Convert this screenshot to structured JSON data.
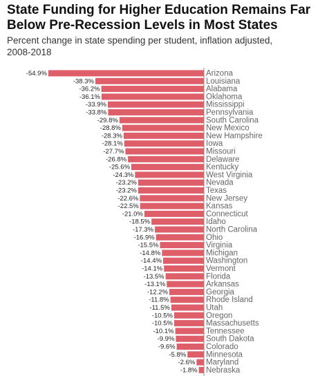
{
  "chart_data": {
    "type": "bar",
    "orientation": "horizontal",
    "title": "State Funding for Higher Education Remains Far Below Pre-Recession Levels in Most States",
    "subtitle": "Percent change in state spending per student, inflation adjusted, 2008-2018",
    "color": "#de5f69",
    "categories": [
      "Arizona",
      "Louisiana",
      "Alabama",
      "Oklahoma",
      "Mississippi",
      "Pennsylvania",
      "South Carolina",
      "New Mexico",
      "New Hampshire",
      "Iowa",
      "Missouri",
      "Delaware",
      "Kentucky",
      "West Virginia",
      "Nevada",
      "Texas",
      "New Jersey",
      "Kansas",
      "Connecticut",
      "Idaho",
      "North Carolina",
      "Ohio",
      "Virginia",
      "Michigan",
      "Washington",
      "Vermont",
      "Florida",
      "Arkansas",
      "Georgia",
      "Rhode Island",
      "Utah",
      "Oregon",
      "Massachusetts",
      "Tennessee",
      "South Dakota",
      "Colorado",
      "Minnesota",
      "Maryland",
      "Nebraska"
    ],
    "values": [
      -54.9,
      -38.3,
      -36.2,
      -36.1,
      -33.9,
      -33.8,
      -29.8,
      -28.8,
      -28.3,
      -28.1,
      -27.7,
      -26.8,
      -25.6,
      -24.3,
      -23.2,
      -23.2,
      -22.6,
      -22.5,
      -21.0,
      -18.5,
      -17.3,
      -16.9,
      -15.5,
      -14.8,
      -14.4,
      -14.1,
      -13.5,
      -13.1,
      -12.2,
      -11.8,
      -11.5,
      -10.5,
      -10.5,
      -10.1,
      -9.9,
      -9.6,
      -5.8,
      -2.6,
      -1.8
    ],
    "value_labels": [
      "-54.9%",
      "-38.3%",
      "-36.2%",
      "-36.1%",
      "-33.9%",
      "-33.8%",
      "-29.8%",
      "-28.8%",
      "-28.3%",
      "-28.1%",
      "-27.7%",
      "-26.8%",
      "-25.6%",
      "-24.3%",
      "-23.2%",
      "-23.2%",
      "-22.6%",
      "-22.5%",
      "-21.0%",
      "-18.5%",
      "-17.3%",
      "-16.9%",
      "-15.5%",
      "-14.8%",
      "-14.4%",
      "-14.1%",
      "-13.5%",
      "-13.1%",
      "-12.2%",
      "-11.8%",
      "-11.5%",
      "-10.5%",
      "-10.5%",
      "-10.1%",
      "-9.9%",
      "-9.6%",
      "-5.8%",
      "-2.6%",
      "-1.8%"
    ]
  }
}
